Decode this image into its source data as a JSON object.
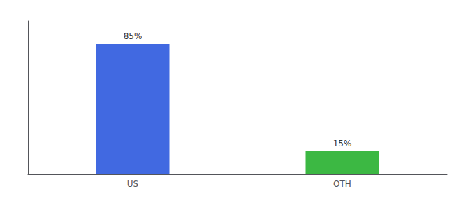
{
  "chart_data": {
    "type": "bar",
    "categories": [
      "US",
      "OTH"
    ],
    "values": [
      85,
      15
    ],
    "value_labels": [
      "85%",
      "15%"
    ],
    "colors": [
      "#4169e1",
      "#3cb843"
    ],
    "ylim": [
      0,
      100
    ],
    "tick_labels": "x",
    "data_labels": true,
    "grid": false
  }
}
